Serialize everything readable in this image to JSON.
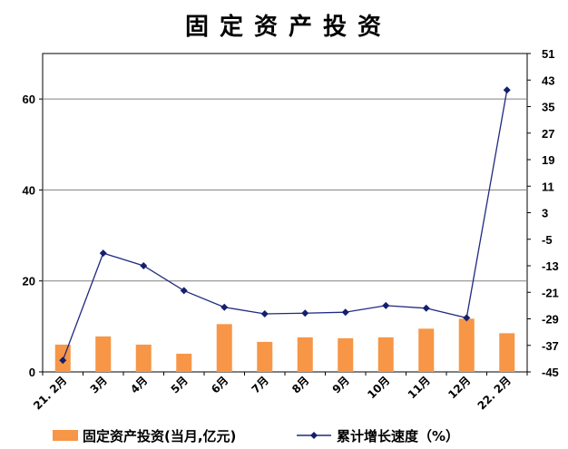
{
  "chart_data": {
    "type": "bar+line",
    "title": "固定资产投资",
    "categories": [
      "21. 2月",
      "3月",
      "4月",
      "5月",
      "6月",
      "7月",
      "8月",
      "9月",
      "10月",
      "11月",
      "12月",
      "22. 2月"
    ],
    "series": [
      {
        "name": "固定资产投资(当月,亿元)",
        "type": "bar",
        "axis": "left",
        "values": [
          6.0,
          7.8,
          6.0,
          4.0,
          10.5,
          6.6,
          7.6,
          7.4,
          7.6,
          9.5,
          11.7,
          8.5
        ]
      },
      {
        "name": "累计增长速度（%）",
        "type": "line",
        "axis": "right",
        "values": [
          -41.5,
          -9.2,
          -13.0,
          -20.5,
          -25.5,
          -27.5,
          -27.3,
          -27.0,
          -25.0,
          -25.8,
          -28.7,
          40.0
        ]
      }
    ],
    "y_left": {
      "min": 0,
      "max": 70,
      "ticks": [
        0,
        20,
        40,
        60
      ]
    },
    "y_right": {
      "min": -45,
      "max": 51,
      "ticks": [
        51,
        43,
        35,
        27,
        19,
        11,
        3,
        -5,
        -13,
        -21,
        -29,
        -37,
        -45
      ]
    },
    "grid": "horizontal",
    "legend_position": "bottom",
    "colors": {
      "bar": "#F79646",
      "line": "#1F2A80",
      "marker": "#14206E",
      "grid": "#808080"
    }
  }
}
